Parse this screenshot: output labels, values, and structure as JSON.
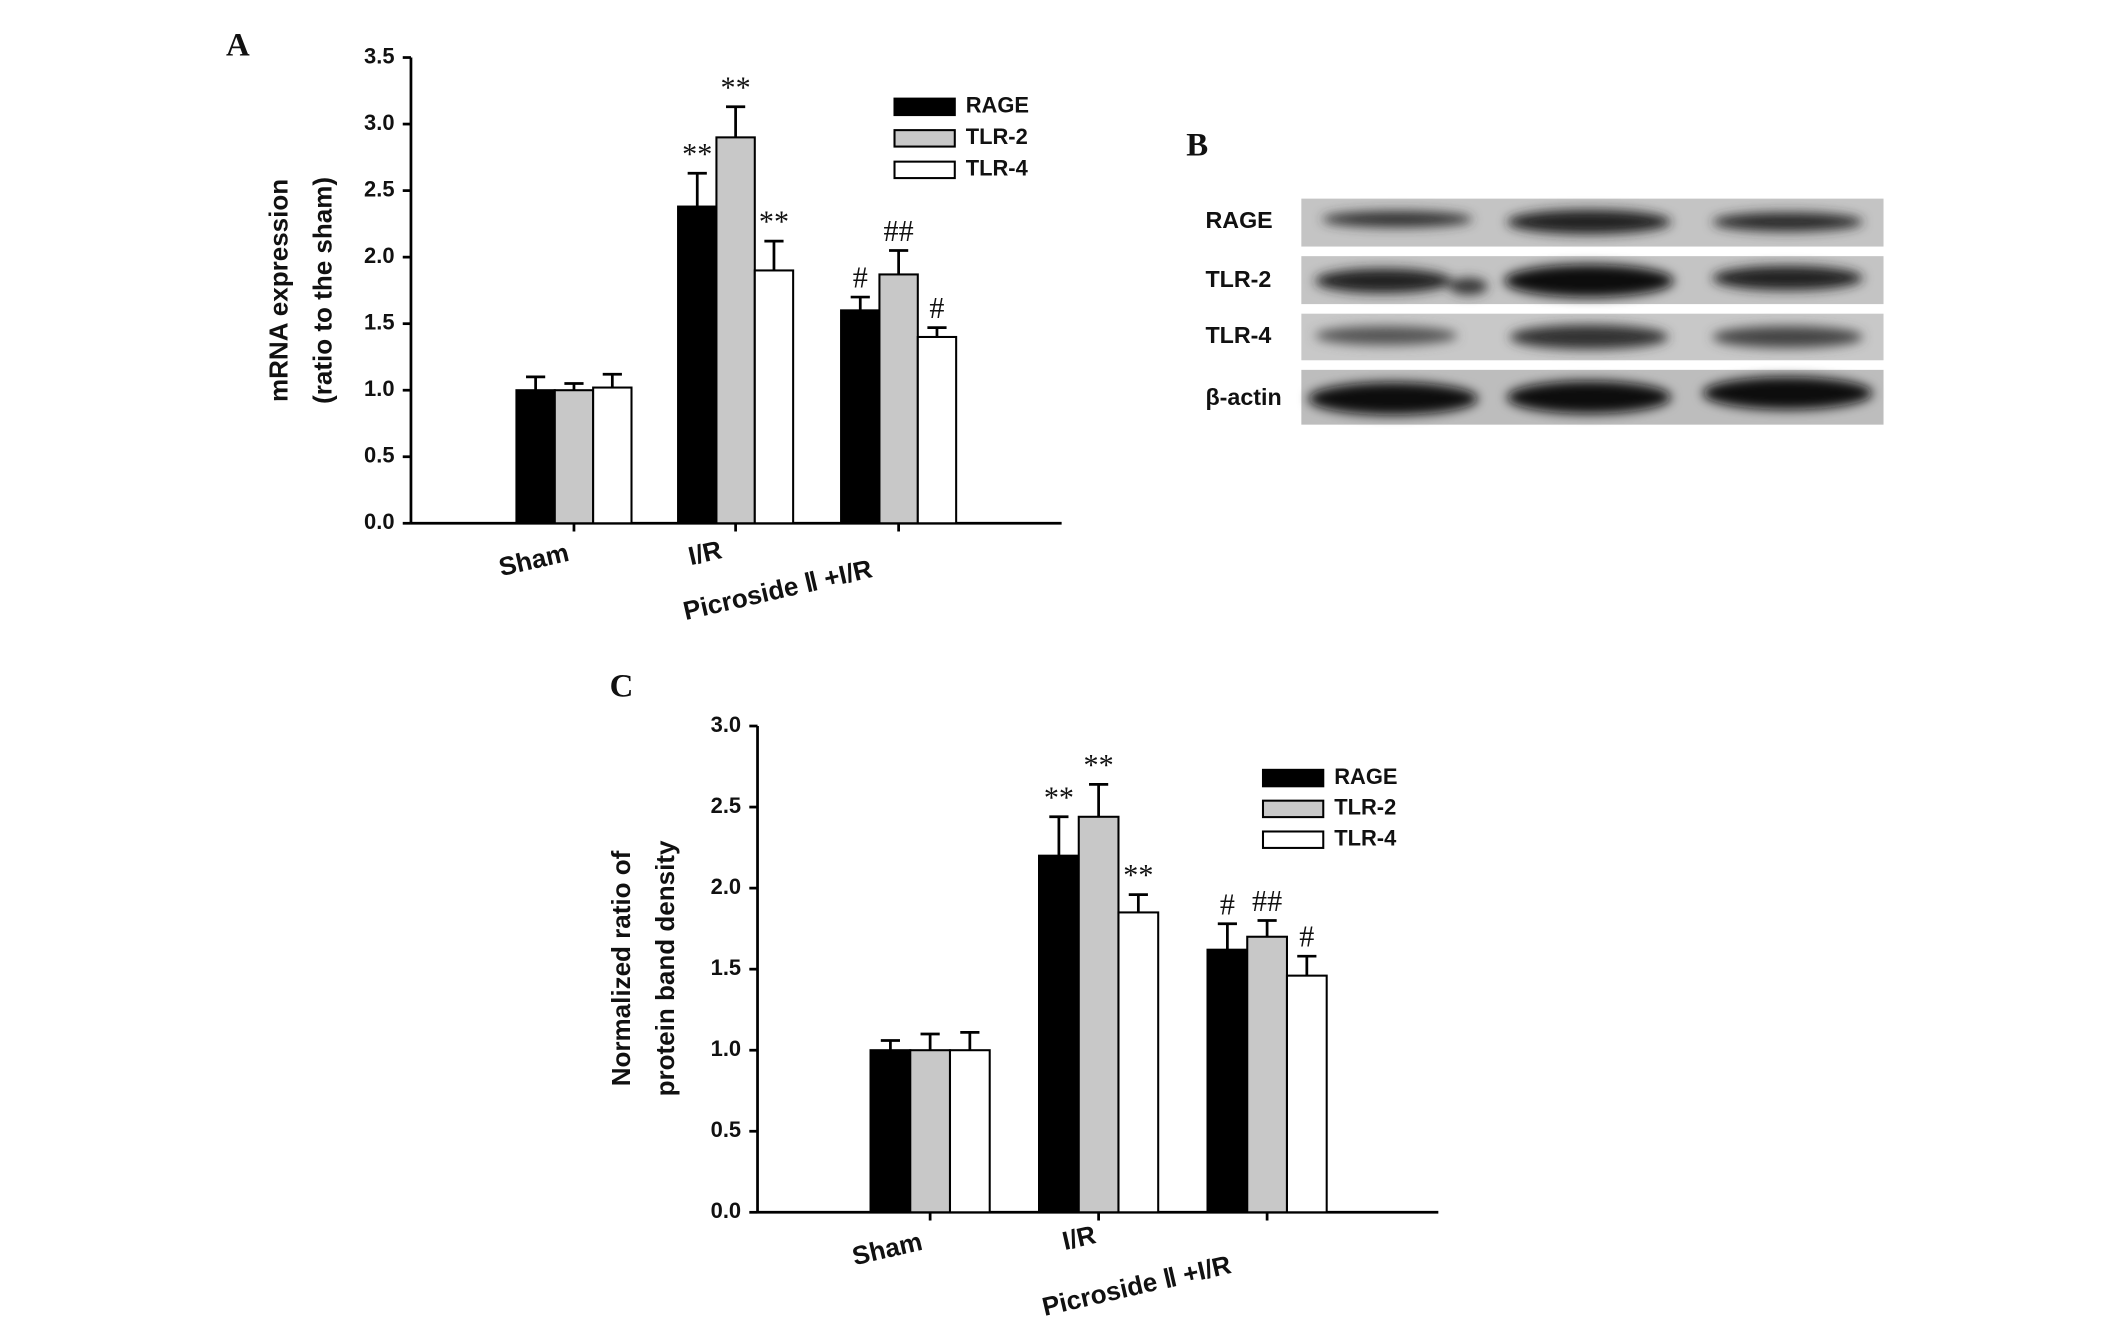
{
  "chart_data": [
    {
      "type": "bar",
      "panel_label": "A",
      "ylabel": [
        "mRNA expression",
        "(ratio to the sham)"
      ],
      "categories": [
        "Sham",
        "I/R",
        "Picroside Ⅱ +I/R"
      ],
      "series": [
        {
          "name": "RAGE",
          "color": "#000000",
          "values": [
            1.0,
            2.38,
            1.6
          ],
          "errors": [
            0.1,
            0.25,
            0.1
          ],
          "annotations": [
            null,
            "**",
            "#"
          ]
        },
        {
          "name": "TLR-2",
          "color": "#c8c8c8",
          "values": [
            1.0,
            2.9,
            1.87
          ],
          "errors": [
            0.05,
            0.23,
            0.18
          ],
          "annotations": [
            null,
            "**",
            "##"
          ]
        },
        {
          "name": "TLR-4",
          "color": "#ffffff",
          "values": [
            1.02,
            1.9,
            1.4
          ],
          "errors": [
            0.1,
            0.22,
            0.07
          ],
          "annotations": [
            null,
            "**",
            "#"
          ]
        }
      ],
      "ylim": [
        0,
        3.5
      ],
      "yticks": [
        {
          "value": 0,
          "label": "0.0"
        },
        {
          "value": 0.5,
          "label": "0.5"
        },
        {
          "value": 1,
          "label": "1.0"
        },
        {
          "value": 1.5,
          "label": "1.5"
        },
        {
          "value": 2,
          "label": "2.0"
        },
        {
          "value": 2.5,
          "label": "2.5"
        },
        {
          "value": 3,
          "label": "3.0"
        },
        {
          "value": 3.5,
          "label": "3.5"
        }
      ],
      "legend": "upper right"
    },
    {
      "type": "bar",
      "panel_label": "C",
      "ylabel": [
        "Normalized ratio of",
        "protein band density"
      ],
      "categories": [
        "Sham",
        "I/R",
        "Picroside Ⅱ +I/R"
      ],
      "series": [
        {
          "name": "RAGE",
          "color": "#000000",
          "values": [
            1.0,
            2.2,
            1.62
          ],
          "errors": [
            0.06,
            0.24,
            0.16
          ],
          "annotations": [
            null,
            "**",
            "#"
          ]
        },
        {
          "name": "TLR-2",
          "color": "#c8c8c8",
          "values": [
            1.0,
            2.44,
            1.7
          ],
          "errors": [
            0.1,
            0.2,
            0.1
          ],
          "annotations": [
            null,
            "**",
            "##"
          ]
        },
        {
          "name": "TLR-4",
          "color": "#ffffff",
          "values": [
            1.0,
            1.85,
            1.46
          ],
          "errors": [
            0.11,
            0.11,
            0.12
          ],
          "annotations": [
            null,
            "**",
            "#"
          ]
        }
      ],
      "ylim": [
        0,
        3.0
      ],
      "yticks": [
        {
          "value": 0,
          "label": "0.0"
        },
        {
          "value": 0.5,
          "label": "0.5"
        },
        {
          "value": 1,
          "label": "1.0"
        },
        {
          "value": 1.5,
          "label": "1.5"
        },
        {
          "value": 2,
          "label": "2.0"
        },
        {
          "value": 2.5,
          "label": "2.5"
        },
        {
          "value": 3,
          "label": "3.0"
        }
      ],
      "legend": "upper right"
    }
  ],
  "blot": {
    "panel_label": "B",
    "rows": [
      "RAGE",
      "TLR-2",
      "TLR-4",
      "β-actin"
    ]
  }
}
